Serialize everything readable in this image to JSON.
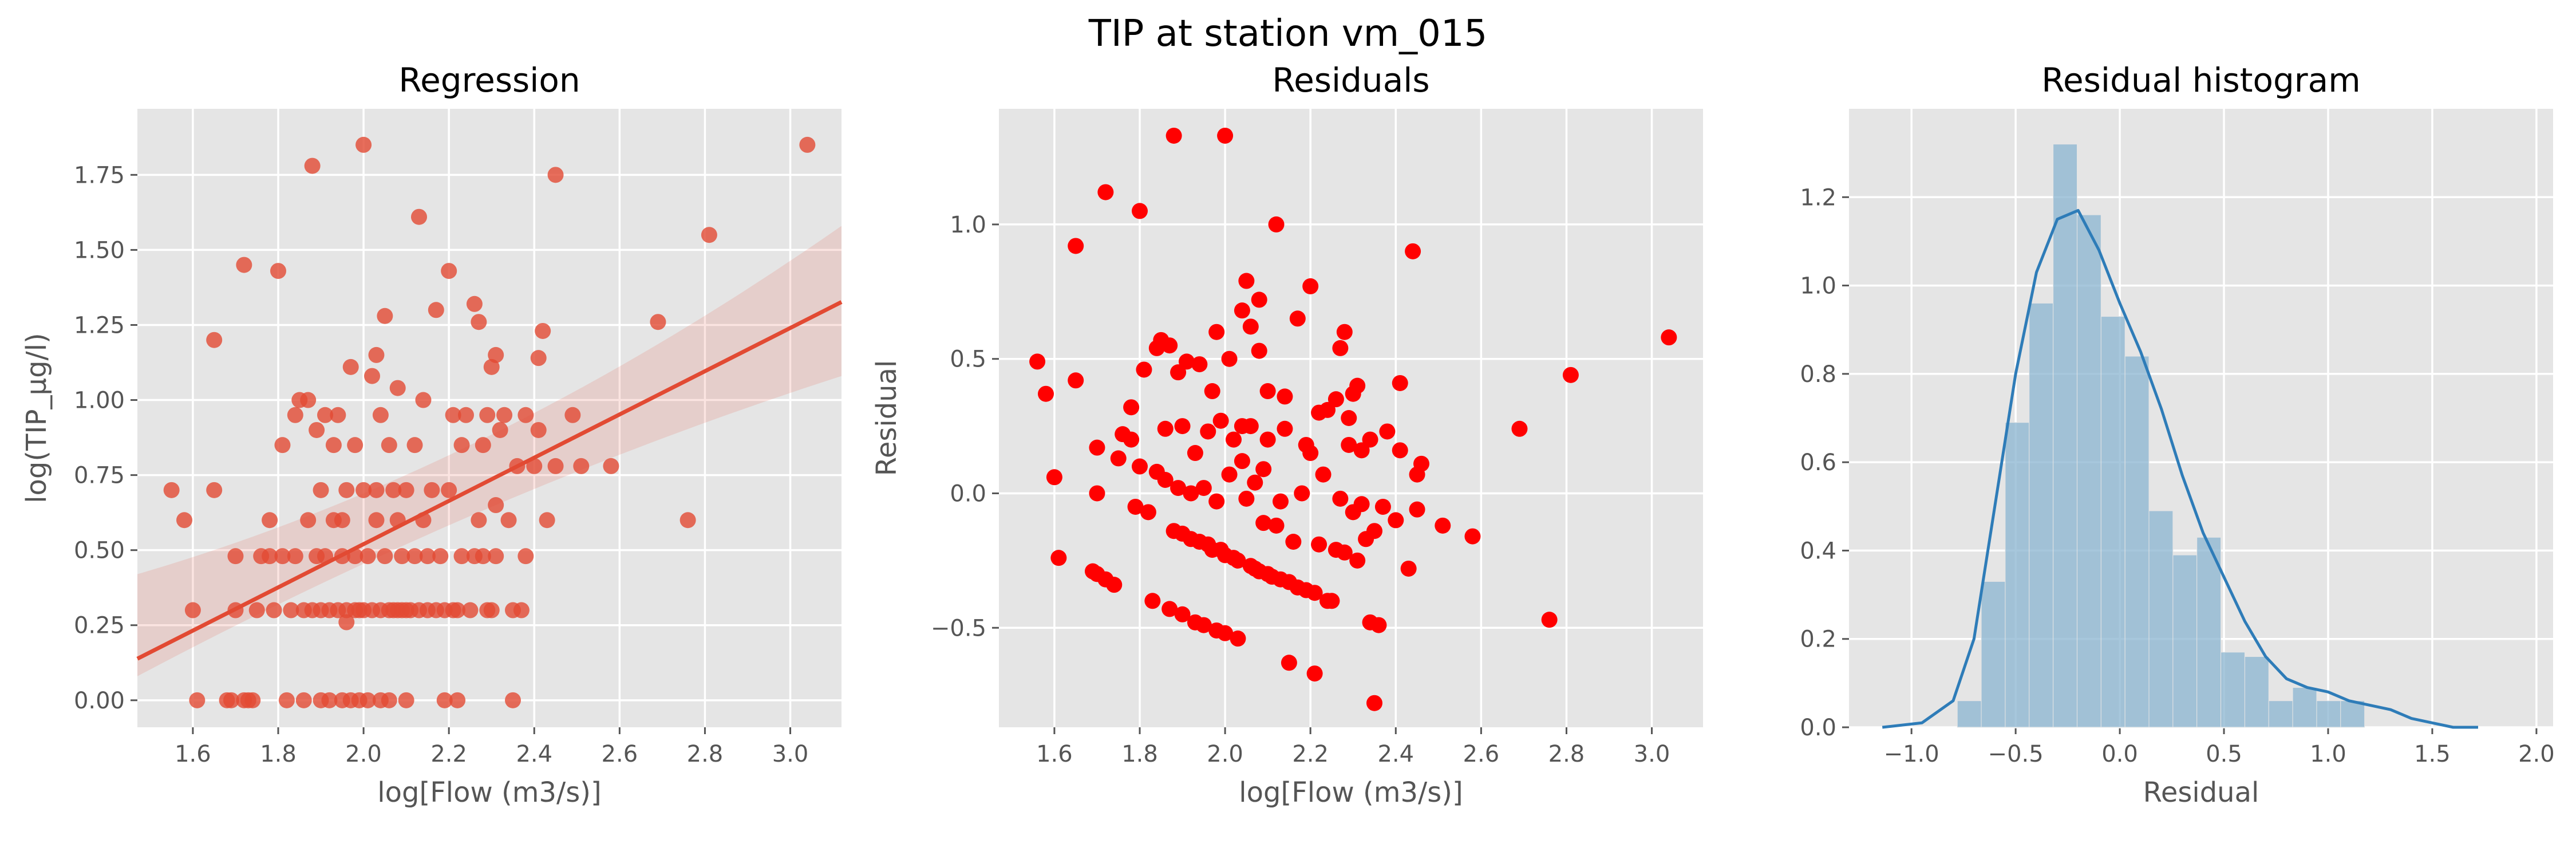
{
  "figure_title": "TIP at station vm_015",
  "chart_data": [
    {
      "type": "scatter",
      "title": "Regression",
      "xlabel": "log[Flow (m3/s)]",
      "ylabel": "log(TIP_μg/l)",
      "xlim": [
        1.47,
        3.12
      ],
      "ylim": [
        -0.09,
        1.97
      ],
      "xticks": [
        "1.6",
        "1.8",
        "2.0",
        "2.2",
        "2.4",
        "2.6",
        "2.8",
        "3.0"
      ],
      "yticks": [
        "0.00",
        "0.25",
        "0.50",
        "0.75",
        "1.00",
        "1.25",
        "1.50",
        "1.75"
      ],
      "point_color": "#e24a33",
      "regression": {
        "slope": 0.72,
        "intercept": -0.92,
        "ci_low_at_xmin": 0.08,
        "ci_high_at_xmin": 0.42,
        "ci_low_at_xmax": 1.08,
        "ci_high_at_xmax": 1.58
      },
      "points": [
        [
          1.55,
          0.7
        ],
        [
          1.58,
          0.6
        ],
        [
          1.6,
          0.3
        ],
        [
          1.61,
          0.0
        ],
        [
          1.65,
          0.7
        ],
        [
          1.65,
          1.2
        ],
        [
          1.68,
          0.0
        ],
        [
          1.69,
          0.0
        ],
        [
          1.7,
          0.3
        ],
        [
          1.7,
          0.48
        ],
        [
          1.72,
          0.0
        ],
        [
          1.72,
          1.45
        ],
        [
          1.73,
          0.0
        ],
        [
          1.74,
          0.0
        ],
        [
          1.75,
          0.3
        ],
        [
          1.76,
          0.48
        ],
        [
          1.78,
          0.48
        ],
        [
          1.78,
          0.6
        ],
        [
          1.79,
          0.3
        ],
        [
          1.8,
          1.43
        ],
        [
          1.81,
          0.48
        ],
        [
          1.81,
          0.85
        ],
        [
          1.82,
          0.0
        ],
        [
          1.83,
          0.3
        ],
        [
          1.84,
          0.48
        ],
        [
          1.84,
          0.95
        ],
        [
          1.85,
          1.0
        ],
        [
          1.86,
          0.0
        ],
        [
          1.86,
          0.3
        ],
        [
          1.87,
          0.6
        ],
        [
          1.87,
          1.0
        ],
        [
          1.88,
          1.78
        ],
        [
          1.88,
          0.3
        ],
        [
          1.89,
          0.48
        ],
        [
          1.89,
          0.9
        ],
        [
          1.9,
          0.0
        ],
        [
          1.9,
          0.3
        ],
        [
          1.9,
          0.7
        ],
        [
          1.91,
          0.48
        ],
        [
          1.91,
          0.95
        ],
        [
          1.92,
          0.0
        ],
        [
          1.92,
          0.3
        ],
        [
          1.93,
          0.6
        ],
        [
          1.93,
          0.85
        ],
        [
          1.94,
          0.3
        ],
        [
          1.94,
          0.95
        ],
        [
          1.95,
          0.0
        ],
        [
          1.95,
          0.48
        ],
        [
          1.95,
          0.6
        ],
        [
          1.96,
          0.26
        ],
        [
          1.96,
          0.3
        ],
        [
          1.96,
          0.7
        ],
        [
          1.97,
          0.0
        ],
        [
          1.97,
          1.11
        ],
        [
          1.98,
          0.3
        ],
        [
          1.98,
          0.48
        ],
        [
          1.98,
          0.85
        ],
        [
          1.99,
          0.0
        ],
        [
          1.99,
          0.3
        ],
        [
          2.0,
          0.3
        ],
        [
          2.0,
          0.7
        ],
        [
          2.0,
          1.85
        ],
        [
          2.01,
          0.0
        ],
        [
          2.01,
          0.48
        ],
        [
          2.02,
          0.3
        ],
        [
          2.02,
          1.08
        ],
        [
          2.03,
          0.6
        ],
        [
          2.03,
          0.7
        ],
        [
          2.03,
          1.15
        ],
        [
          2.04,
          0.0
        ],
        [
          2.04,
          0.3
        ],
        [
          2.04,
          0.95
        ],
        [
          2.05,
          0.48
        ],
        [
          2.05,
          1.28
        ],
        [
          2.06,
          0.0
        ],
        [
          2.06,
          0.3
        ],
        [
          2.06,
          0.85
        ],
        [
          2.07,
          0.3
        ],
        [
          2.07,
          0.7
        ],
        [
          2.08,
          0.3
        ],
        [
          2.08,
          0.6
        ],
        [
          2.08,
          1.04
        ],
        [
          2.09,
          0.3
        ],
        [
          2.09,
          0.48
        ],
        [
          2.1,
          0.0
        ],
        [
          2.1,
          0.3
        ],
        [
          2.1,
          0.7
        ],
        [
          2.11,
          0.3
        ],
        [
          2.12,
          0.48
        ],
        [
          2.12,
          0.85
        ],
        [
          2.13,
          0.3
        ],
        [
          2.13,
          1.61
        ],
        [
          2.14,
          0.6
        ],
        [
          2.14,
          1.0
        ],
        [
          2.15,
          0.3
        ],
        [
          2.15,
          0.48
        ],
        [
          2.16,
          0.7
        ],
        [
          2.17,
          0.3
        ],
        [
          2.17,
          1.3
        ],
        [
          2.18,
          0.48
        ],
        [
          2.19,
          0.0
        ],
        [
          2.19,
          0.3
        ],
        [
          2.2,
          1.43
        ],
        [
          2.2,
          0.7
        ],
        [
          2.21,
          0.3
        ],
        [
          2.21,
          0.95
        ],
        [
          2.22,
          0.0
        ],
        [
          2.22,
          0.3
        ],
        [
          2.23,
          0.48
        ],
        [
          2.23,
          0.85
        ],
        [
          2.24,
          0.95
        ],
        [
          2.25,
          0.3
        ],
        [
          2.26,
          0.48
        ],
        [
          2.26,
          1.32
        ],
        [
          2.27,
          0.6
        ],
        [
          2.27,
          1.26
        ],
        [
          2.28,
          0.48
        ],
        [
          2.28,
          0.85
        ],
        [
          2.29,
          0.3
        ],
        [
          2.29,
          0.95
        ],
        [
          2.3,
          1.11
        ],
        [
          2.3,
          0.3
        ],
        [
          2.31,
          0.48
        ],
        [
          2.31,
          0.65
        ],
        [
          2.31,
          1.15
        ],
        [
          2.32,
          0.9
        ],
        [
          2.33,
          0.95
        ],
        [
          2.34,
          0.6
        ],
        [
          2.35,
          0.3
        ],
        [
          2.35,
          0.0
        ],
        [
          2.36,
          0.78
        ],
        [
          2.37,
          0.3
        ],
        [
          2.38,
          0.48
        ],
        [
          2.38,
          0.95
        ],
        [
          2.4,
          0.78
        ],
        [
          2.41,
          0.9
        ],
        [
          2.41,
          1.14
        ],
        [
          2.42,
          1.23
        ],
        [
          2.43,
          0.6
        ],
        [
          2.45,
          0.78
        ],
        [
          2.45,
          1.75
        ],
        [
          2.49,
          0.95
        ],
        [
          2.51,
          0.78
        ],
        [
          2.58,
          0.78
        ],
        [
          2.69,
          1.26
        ],
        [
          2.76,
          0.6
        ],
        [
          2.81,
          1.55
        ],
        [
          3.04,
          1.85
        ]
      ]
    },
    {
      "type": "scatter",
      "title": "Residuals",
      "xlabel": "log[Flow (m3/s)]",
      "ylabel": "Residual",
      "xlim": [
        1.47,
        3.12
      ],
      "ylim": [
        -0.87,
        1.43
      ],
      "xticks": [
        "1.6",
        "1.8",
        "2.0",
        "2.2",
        "2.4",
        "2.6",
        "2.8",
        "3.0"
      ],
      "yticks": [
        "−0.5",
        "0.0",
        "0.5",
        "1.0"
      ],
      "ytick_values": [
        -0.5,
        0.0,
        0.5,
        1.0
      ],
      "point_color": "#ff0000",
      "points": [
        [
          1.56,
          0.49
        ],
        [
          1.58,
          0.37
        ],
        [
          1.6,
          0.06
        ],
        [
          1.61,
          -0.24
        ],
        [
          1.65,
          0.42
        ],
        [
          1.65,
          0.92
        ],
        [
          1.69,
          -0.29
        ],
        [
          1.7,
          -0.3
        ],
        [
          1.7,
          0.0
        ],
        [
          1.7,
          0.17
        ],
        [
          1.72,
          1.12
        ],
        [
          1.72,
          -0.32
        ],
        [
          1.74,
          -0.34
        ],
        [
          1.75,
          0.13
        ],
        [
          1.76,
          0.22
        ],
        [
          1.78,
          0.2
        ],
        [
          1.78,
          0.32
        ],
        [
          1.79,
          -0.05
        ],
        [
          1.8,
          1.05
        ],
        [
          1.8,
          0.1
        ],
        [
          1.81,
          0.46
        ],
        [
          1.82,
          -0.07
        ],
        [
          1.83,
          -0.4
        ],
        [
          1.84,
          0.08
        ],
        [
          1.84,
          0.54
        ],
        [
          1.85,
          0.57
        ],
        [
          1.86,
          0.05
        ],
        [
          1.86,
          0.24
        ],
        [
          1.87,
          -0.43
        ],
        [
          1.87,
          0.55
        ],
        [
          1.88,
          1.33
        ],
        [
          1.88,
          -0.14
        ],
        [
          1.89,
          0.02
        ],
        [
          1.89,
          0.45
        ],
        [
          1.9,
          -0.45
        ],
        [
          1.9,
          -0.15
        ],
        [
          1.9,
          0.25
        ],
        [
          1.91,
          0.49
        ],
        [
          1.92,
          -0.17
        ],
        [
          1.92,
          0.0
        ],
        [
          1.93,
          -0.48
        ],
        [
          1.93,
          0.15
        ],
        [
          1.94,
          -0.18
        ],
        [
          1.94,
          0.48
        ],
        [
          1.95,
          -0.49
        ],
        [
          1.95,
          0.02
        ],
        [
          1.96,
          -0.19
        ],
        [
          1.96,
          0.23
        ],
        [
          1.97,
          -0.21
        ],
        [
          1.97,
          0.38
        ],
        [
          1.98,
          -0.51
        ],
        [
          1.98,
          -0.03
        ],
        [
          1.98,
          0.6
        ],
        [
          1.99,
          -0.21
        ],
        [
          1.99,
          0.27
        ],
        [
          2.0,
          1.33
        ],
        [
          2.0,
          -0.52
        ],
        [
          2.0,
          -0.23
        ],
        [
          2.01,
          0.07
        ],
        [
          2.01,
          0.5
        ],
        [
          2.02,
          -0.24
        ],
        [
          2.02,
          0.2
        ],
        [
          2.03,
          -0.54
        ],
        [
          2.03,
          -0.25
        ],
        [
          2.04,
          0.12
        ],
        [
          2.04,
          0.25
        ],
        [
          2.04,
          0.68
        ],
        [
          2.05,
          -0.02
        ],
        [
          2.05,
          0.79
        ],
        [
          2.06,
          -0.27
        ],
        [
          2.06,
          0.25
        ],
        [
          2.06,
          0.62
        ],
        [
          2.07,
          -0.28
        ],
        [
          2.07,
          0.04
        ],
        [
          2.08,
          -0.29
        ],
        [
          2.08,
          0.53
        ],
        [
          2.08,
          0.72
        ],
        [
          2.09,
          -0.11
        ],
        [
          2.09,
          0.09
        ],
        [
          2.1,
          -0.3
        ],
        [
          2.1,
          0.2
        ],
        [
          2.1,
          0.38
        ],
        [
          2.11,
          -0.31
        ],
        [
          2.12,
          -0.12
        ],
        [
          2.12,
          1.0
        ],
        [
          2.13,
          -0.32
        ],
        [
          2.13,
          -0.03
        ],
        [
          2.14,
          0.24
        ],
        [
          2.14,
          0.36
        ],
        [
          2.15,
          -0.63
        ],
        [
          2.15,
          -0.33
        ],
        [
          2.16,
          -0.18
        ],
        [
          2.17,
          -0.35
        ],
        [
          2.17,
          0.65
        ],
        [
          2.18,
          0.0
        ],
        [
          2.19,
          -0.36
        ],
        [
          2.19,
          0.18
        ],
        [
          2.2,
          0.77
        ],
        [
          2.2,
          0.15
        ],
        [
          2.21,
          -0.37
        ],
        [
          2.21,
          -0.67
        ],
        [
          2.22,
          0.3
        ],
        [
          2.22,
          -0.19
        ],
        [
          2.23,
          0.07
        ],
        [
          2.24,
          -0.4
        ],
        [
          2.24,
          0.31
        ],
        [
          2.25,
          -0.4
        ],
        [
          2.26,
          -0.21
        ],
        [
          2.26,
          0.35
        ],
        [
          2.27,
          0.54
        ],
        [
          2.27,
          -0.02
        ],
        [
          2.28,
          0.6
        ],
        [
          2.28,
          -0.22
        ],
        [
          2.29,
          0.18
        ],
        [
          2.29,
          0.28
        ],
        [
          2.3,
          -0.07
        ],
        [
          2.3,
          0.37
        ],
        [
          2.31,
          -0.25
        ],
        [
          2.31,
          0.4
        ],
        [
          2.32,
          0.16
        ],
        [
          2.32,
          -0.04
        ],
        [
          2.33,
          -0.17
        ],
        [
          2.34,
          0.2
        ],
        [
          2.34,
          -0.48
        ],
        [
          2.35,
          -0.14
        ],
        [
          2.35,
          -0.78
        ],
        [
          2.36,
          -0.49
        ],
        [
          2.37,
          -0.05
        ],
        [
          2.38,
          0.23
        ],
        [
          2.4,
          -0.1
        ],
        [
          2.41,
          0.41
        ],
        [
          2.41,
          0.16
        ],
        [
          2.43,
          -0.28
        ],
        [
          2.44,
          0.9
        ],
        [
          2.45,
          -0.06
        ],
        [
          2.45,
          0.07
        ],
        [
          2.46,
          0.11
        ],
        [
          2.51,
          -0.12
        ],
        [
          2.58,
          -0.16
        ],
        [
          2.69,
          0.24
        ],
        [
          2.76,
          -0.47
        ],
        [
          2.81,
          0.44
        ],
        [
          3.04,
          0.58
        ]
      ]
    },
    {
      "type": "bar",
      "title": "Residual histogram",
      "xlabel": "Residual",
      "ylabel": "",
      "xlim": [
        -1.3,
        2.08
      ],
      "ylim": [
        0.0,
        1.4
      ],
      "xticks": [
        "−1.0",
        "−0.5",
        "0.0",
        "0.5",
        "1.0",
        "1.5",
        "2.0"
      ],
      "xtick_values": [
        -1.0,
        -0.5,
        0.0,
        0.5,
        1.0,
        1.5,
        2.0
      ],
      "yticks": [
        "0.0",
        "0.2",
        "0.4",
        "0.6",
        "0.8",
        "1.0",
        "1.2"
      ],
      "ytick_values": [
        0.0,
        0.2,
        0.4,
        0.6,
        0.8,
        1.0,
        1.2
      ],
      "bar_color": "#8ab4d0",
      "kde_color": "#2e7cb8",
      "bin_edges": [
        -0.78,
        -0.665,
        -0.55,
        -0.435,
        -0.32,
        -0.205,
        -0.09,
        0.025,
        0.14,
        0.255,
        0.37,
        0.485,
        0.6,
        0.715,
        0.83,
        0.945,
        1.06,
        1.175,
        1.29,
        1.405
      ],
      "densities": [
        0.06,
        0.33,
        0.69,
        0.96,
        1.32,
        1.16,
        0.93,
        0.84,
        0.49,
        0.39,
        0.43,
        0.17,
        0.16,
        0.06,
        0.09,
        0.06,
        0.06,
        0.0,
        0.0
      ],
      "kde": [
        [
          -1.14,
          0.0
        ],
        [
          -0.95,
          0.01
        ],
        [
          -0.8,
          0.06
        ],
        [
          -0.7,
          0.2
        ],
        [
          -0.6,
          0.5
        ],
        [
          -0.5,
          0.8
        ],
        [
          -0.4,
          1.03
        ],
        [
          -0.3,
          1.15
        ],
        [
          -0.2,
          1.17
        ],
        [
          -0.1,
          1.08
        ],
        [
          0.0,
          0.96
        ],
        [
          0.1,
          0.85
        ],
        [
          0.2,
          0.72
        ],
        [
          0.3,
          0.57
        ],
        [
          0.4,
          0.44
        ],
        [
          0.5,
          0.34
        ],
        [
          0.6,
          0.24
        ],
        [
          0.7,
          0.16
        ],
        [
          0.8,
          0.11
        ],
        [
          0.9,
          0.09
        ],
        [
          1.0,
          0.08
        ],
        [
          1.1,
          0.06
        ],
        [
          1.2,
          0.05
        ],
        [
          1.3,
          0.04
        ],
        [
          1.4,
          0.02
        ],
        [
          1.5,
          0.01
        ],
        [
          1.6,
          0.0
        ],
        [
          1.72,
          0.0
        ]
      ]
    }
  ]
}
